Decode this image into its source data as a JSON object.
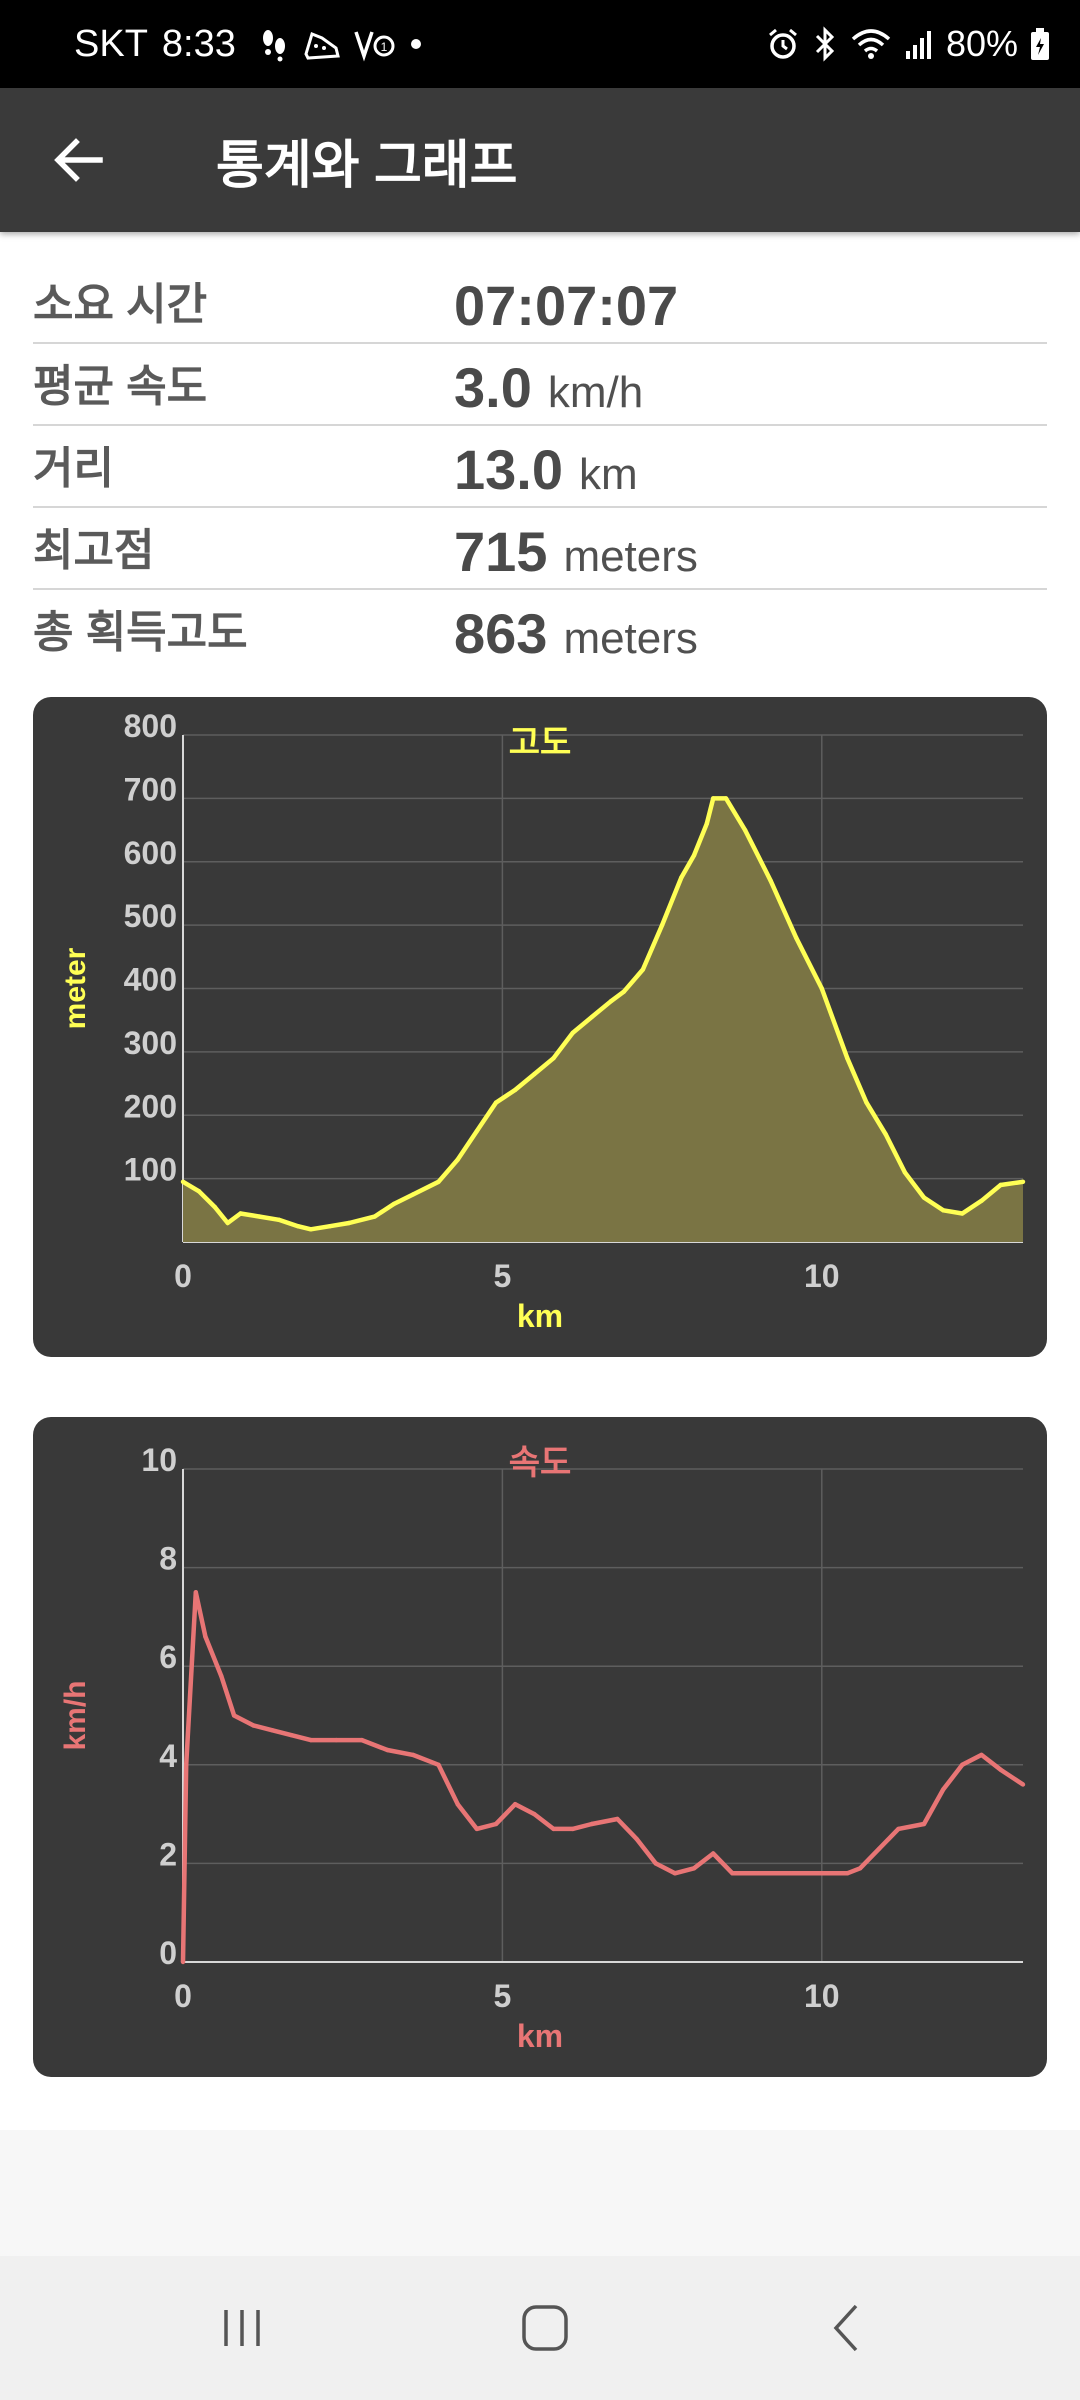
{
  "status_bar": {
    "carrier": "SKT",
    "time": "8:33",
    "battery": "80%",
    "left_icons": [
      "footsteps-icon",
      "running-shoe-icon",
      "vpn-icon",
      "dot-icon"
    ],
    "right_icons": [
      "alarm-icon",
      "bluetooth-icon",
      "wifi-icon",
      "signal-icon",
      "battery-icon"
    ]
  },
  "app_bar": {
    "title": "통계와 그래프",
    "back_icon": "arrow-left-icon"
  },
  "stats": [
    {
      "label": "소요 시간",
      "value": "07:07:07",
      "unit": ""
    },
    {
      "label": "평균 속도",
      "value": "3.0",
      "unit": "km/h"
    },
    {
      "label": "거리",
      "value": "13.0",
      "unit": "km"
    },
    {
      "label": "최고점",
      "value": "715",
      "unit": "meters"
    },
    {
      "label": "총 획득고도",
      "value": "863",
      "unit": "meters"
    }
  ],
  "chart_data": [
    {
      "type": "area",
      "title": "고도",
      "xlabel": "km",
      "ylabel": "meter",
      "color": "#ffff55",
      "fill": "#7a7444",
      "xlim": [
        0,
        13.15
      ],
      "ylim": [
        0,
        800
      ],
      "x_ticks": [
        0,
        5,
        10
      ],
      "y_ticks": [
        100,
        200,
        300,
        400,
        500,
        600,
        700,
        800
      ],
      "grid": true,
      "x": [
        0,
        0.25,
        0.5,
        0.7,
        0.9,
        1.2,
        1.5,
        1.8,
        2.0,
        2.3,
        2.6,
        3.0,
        3.3,
        3.6,
        4.0,
        4.3,
        4.6,
        4.9,
        5.2,
        5.5,
        5.8,
        6.1,
        6.4,
        6.7,
        6.9,
        7.2,
        7.5,
        7.8,
        8.0,
        8.2,
        8.3,
        8.5,
        8.8,
        9.2,
        9.6,
        10.0,
        10.4,
        10.7,
        11.0,
        11.3,
        11.6,
        11.9,
        12.2,
        12.5,
        12.8,
        13.15
      ],
      "y": [
        95,
        80,
        55,
        30,
        45,
        40,
        35,
        25,
        20,
        25,
        30,
        40,
        60,
        75,
        95,
        130,
        175,
        220,
        240,
        265,
        290,
        330,
        355,
        380,
        395,
        430,
        500,
        575,
        610,
        660,
        700,
        700,
        650,
        570,
        480,
        400,
        290,
        220,
        170,
        110,
        70,
        50,
        45,
        65,
        90,
        95
      ]
    },
    {
      "type": "line",
      "title": "속도",
      "xlabel": "km",
      "ylabel": "km/h",
      "color": "#e87575",
      "xlim": [
        0,
        13.15
      ],
      "ylim": [
        0,
        10
      ],
      "x_ticks": [
        0,
        5,
        10
      ],
      "y_ticks": [
        0,
        2,
        4,
        6,
        8,
        10
      ],
      "grid": true,
      "x": [
        0,
        0.05,
        0.2,
        0.35,
        0.6,
        0.8,
        1.1,
        1.4,
        1.7,
        2.0,
        2.4,
        2.8,
        3.2,
        3.6,
        4.0,
        4.3,
        4.6,
        4.9,
        5.2,
        5.5,
        5.8,
        6.1,
        6.4,
        6.8,
        7.1,
        7.4,
        7.7,
        8.0,
        8.3,
        8.6,
        9.0,
        9.5,
        10.0,
        10.4,
        10.6,
        10.9,
        11.2,
        11.6,
        11.9,
        12.2,
        12.5,
        12.8,
        13.15
      ],
      "y": [
        0,
        4.0,
        7.5,
        6.6,
        5.8,
        5.0,
        4.8,
        4.7,
        4.6,
        4.5,
        4.5,
        4.5,
        4.3,
        4.2,
        4.0,
        3.2,
        2.7,
        2.8,
        3.2,
        3.0,
        2.7,
        2.7,
        2.8,
        2.9,
        2.5,
        2.0,
        1.8,
        1.9,
        2.2,
        1.8,
        1.8,
        1.8,
        1.8,
        1.8,
        1.9,
        2.3,
        2.7,
        2.8,
        3.5,
        4.0,
        4.2,
        3.9,
        3.6
      ]
    }
  ]
}
